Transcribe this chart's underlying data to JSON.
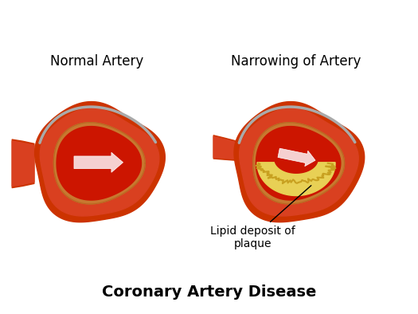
{
  "title": "Coronary Artery Disease",
  "left_label": "Normal Artery",
  "right_label": "Narrowing of Artery",
  "annotation": "Lipid deposit of\nplaque",
  "bg_color": "#ffffff",
  "title_fontsize": 14,
  "label_fontsize": 12,
  "annotation_fontsize": 10,
  "outer_color": "#cc3300",
  "tissue_color": "#d94020",
  "wall_color": "#c87830",
  "blood_color": "#cc1500",
  "arrow_color": "#f5d0d0",
  "plaque_color": "#e8d055",
  "plaque_edge_color": "#c8a020",
  "rim_color": "#aaaaaa"
}
